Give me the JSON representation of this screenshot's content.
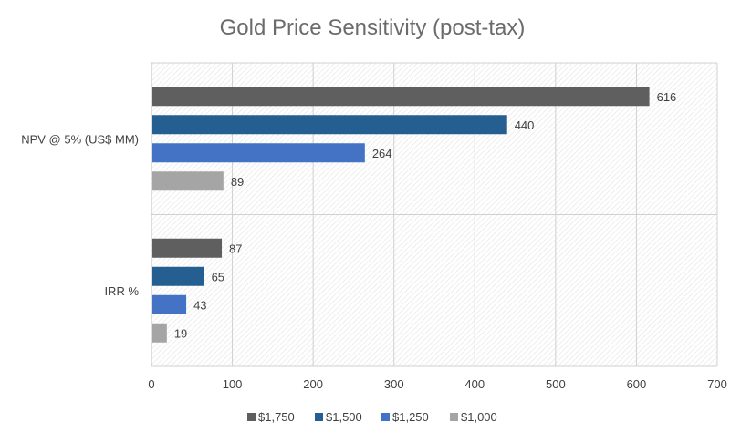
{
  "chart_data": {
    "type": "bar",
    "orientation": "horizontal",
    "title": "Gold Price Sensitivity (post-tax)",
    "categories": [
      "NPV @ 5% (US$ MM)",
      "IRR %"
    ],
    "series": [
      {
        "name": "$1,750",
        "color": "#5f5f5f",
        "values": [
          616,
          87
        ]
      },
      {
        "name": "$1,500",
        "color": "#255e91",
        "values": [
          440,
          65
        ]
      },
      {
        "name": "$1,250",
        "color": "#4472c4",
        "values": [
          264,
          43
        ]
      },
      {
        "name": "$1,000",
        "color": "#a5a5a5",
        "values": [
          89,
          19
        ]
      }
    ],
    "xlim": [
      0,
      700
    ],
    "xticks": [
      0,
      100,
      200,
      300,
      400,
      500,
      600,
      700
    ],
    "grid": true,
    "legend_position": "bottom"
  }
}
